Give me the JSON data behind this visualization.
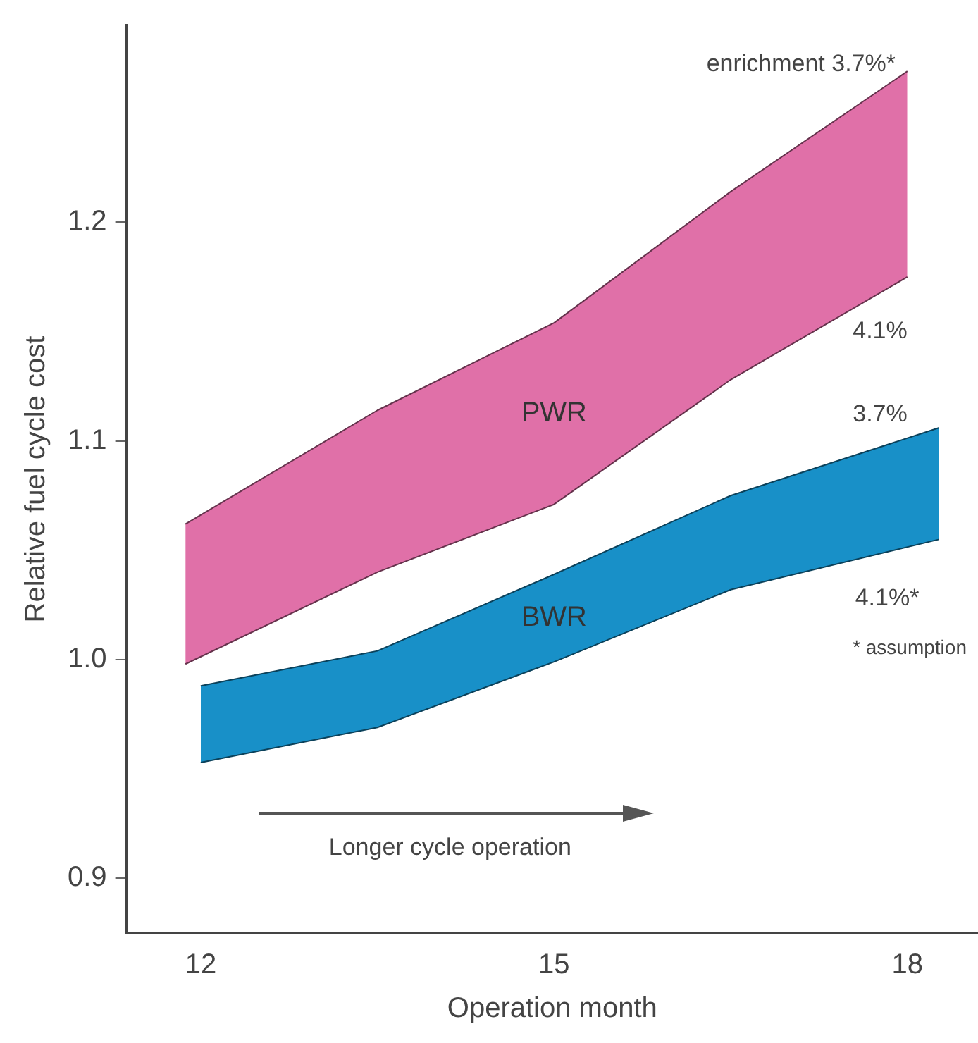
{
  "chart_data": {
    "type": "area",
    "xlabel": "Operation month",
    "ylabel": "Relative fuel cycle cost",
    "xlim": [
      11.37,
      18.6
    ],
    "xticks": [
      12,
      15,
      18
    ],
    "ylim": [
      0.875,
      1.29
    ],
    "yticks": [
      0.9,
      {
        "value": 1,
        "label": "1.0"
      },
      1.1,
      1.2
    ],
    "series": [
      {
        "type": "line",
        "color": "#65324c",
        "x": [
          11.87,
          13.5,
          15,
          16.5,
          18
        ],
        "values": [
          0.998,
          1.04,
          1.071,
          1.128,
          1.175
        ]
      },
      {
        "name": "PWR",
        "color": "#e070a8",
        "x": [
          11.87,
          13.5,
          15,
          16.5,
          18
        ],
        "values": [
          1.062,
          1.114,
          1.154,
          1.214,
          1.269
        ]
      },
      {
        "type": "line",
        "color": "#0b415a",
        "x": [
          12,
          13.5,
          15,
          16.5,
          18.27
        ],
        "values": [
          0.953,
          0.969,
          0.999,
          1.032,
          1.055
        ]
      },
      {
        "name": "BWR",
        "color": "#1890c8",
        "x": [
          12,
          13.5,
          15,
          16.5,
          18.27
        ],
        "values": [
          0.988,
          1.004,
          1.039,
          1.075,
          1.106
        ]
      }
    ],
    "annotations": [
      "enrichment 3.7%*",
      "4.1%",
      "3.7%",
      "4.1%*",
      "* assumption",
      "Longer cycle operation"
    ],
    "legend": false
  }
}
